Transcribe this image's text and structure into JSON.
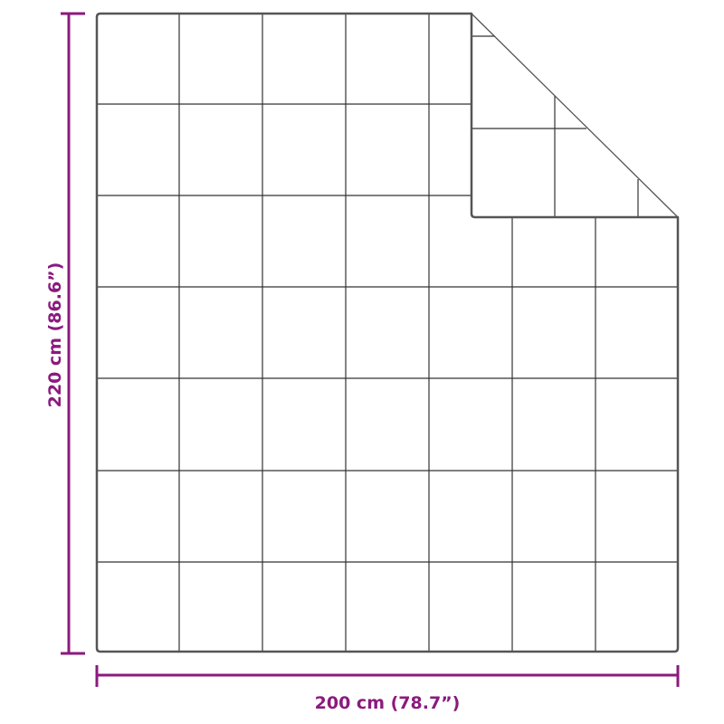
{
  "dimensions": {
    "width_label": "200 cm (78.7”)",
    "height_label": "220 cm (86.6”)"
  },
  "colors": {
    "dimension": "#8b1a7e",
    "outline": "#444444",
    "grid": "#333333"
  }
}
